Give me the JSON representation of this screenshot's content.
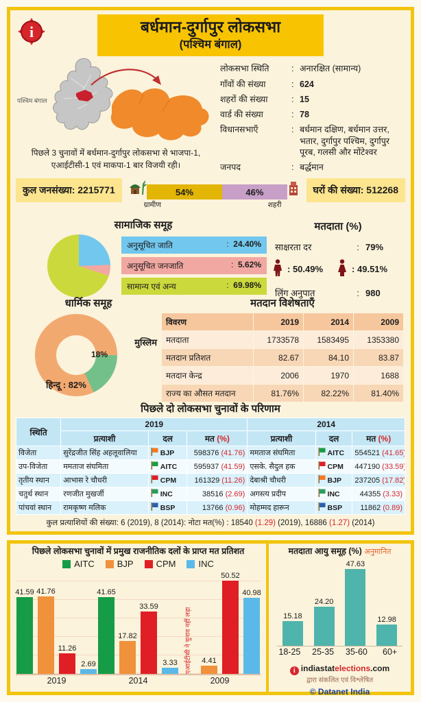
{
  "colors": {
    "frame_yellow": "#f2c40e",
    "banner_yellow": "#f8c402",
    "cream_bg": "#fbf3dc",
    "accent_red": "#d6262b",
    "pop_box_yellow": "#fce58e",
    "gold_bar": "#e3b505",
    "plum_bar": "#c79fc7",
    "results_header_blue": "#c3e6f5",
    "results_row_blue": "#d9f1fb",
    "voting_header_peach": "#f6c79d",
    "voting_row_peach": "#f8d7b6",
    "teal_bar": "#4fb4ab",
    "maroon_icon": "#7e1416"
  },
  "icons": {
    "info_icon": "i-target",
    "rural_icon": "hut",
    "urban_icon": "building",
    "male_icon": "person-male",
    "female_icon": "person-female",
    "party_icon": "flag",
    "brand_info_icon": "i-circle"
  },
  "header": {
    "title": "बर्धमान-दुर्गापुर लोकसभा",
    "subtitle": "(पश्चिम बंगाल)"
  },
  "map": {
    "state_label": "पश्चिम बंगाल",
    "caption": "पिछले 3 चुनावों में बर्धमान-दुर्गापुर लोकसभा से भाजपा-1, एआईटीसी-1 एवं माकपा-1 बार विजयी रही।"
  },
  "info": {
    "rows": [
      {
        "label": "लोकसभा स्थिति",
        "value": "अनारक्षित (सामान्य)",
        "bold": false
      },
      {
        "label": "गाँवों की संख्या",
        "value": "624",
        "bold": true
      },
      {
        "label": "शहरों की संख्या",
        "value": "15",
        "bold": true
      },
      {
        "label": "वार्ड की संख्या",
        "value": "78",
        "bold": true
      },
      {
        "label": "विधानसभाएँ",
        "value": "बर्धमान दक्षिण, बर्धमान उत्तर, भतार, दुर्गापुर पश्चिम, दुर्गापुर पूरब, गलसी और मोंटेश्वर",
        "bold": false
      },
      {
        "label": "जनपद",
        "value": "बर्द्धमान",
        "bold": false
      }
    ]
  },
  "population": {
    "total_label": "कुल जनसंख्या:",
    "total_value": "2215771",
    "rural_label": "ग्रामीण",
    "rural_value": 54,
    "rural_pct": "54%",
    "urban_label": "शहरी",
    "urban_value": 46,
    "urban_pct": "46%",
    "households_label": "घरों की संख्या:",
    "households_value": "512268"
  },
  "social": {
    "title": "सामाजिक समूह"
  },
  "voters": {
    "title": "मतदाता (%)",
    "literacy_label": "साक्षरता दर",
    "literacy_value": "79%",
    "male_pct": "50.49%",
    "female_pct": "49.51%",
    "sex_ratio_label": "लिंग अनुपात",
    "sex_ratio_value": "980"
  },
  "religion": {
    "title": "धार्मिक समूह"
  },
  "voting_table": {
    "title": "मतदान विशेषताएँ",
    "headers": [
      "विवरण",
      "2019",
      "2014",
      "2009"
    ],
    "rows": [
      [
        "मतदाता",
        "1733578",
        "1583495",
        "1353380"
      ],
      [
        "मतदान प्रतिशत",
        "82.67",
        "84.10",
        "83.87"
      ],
      [
        "मतदान केन्द्र",
        "2006",
        "1970",
        "1688"
      ],
      [
        "राज्य का औसत मतदान",
        "81.76%",
        "82.22%",
        "81.40%"
      ]
    ]
  },
  "results": {
    "title": "पिछले दो लोकसभा चुनावों के परिणाम",
    "col_status": "स्थिति",
    "year1": "2019",
    "year2": "2014",
    "col_candidate": "प्रत्याशी",
    "col_party": "दल",
    "col_votes": "मत",
    "col_votes_pct": "(%)",
    "rows": [
      {
        "position": "विजेता",
        "c1": "सुरेंद्रजीत सिंह अहलूवालिया",
        "p1": "BJP",
        "v1": "598376",
        "pct1": "(41.76)",
        "c2": "ममताज संघमिता",
        "p2": "AITC",
        "v2": "554521",
        "pct2": "(41.65)"
      },
      {
        "position": "उप-विजेता",
        "c1": "ममताज संघमिता",
        "p1": "AITC",
        "v1": "595937",
        "pct1": "(41.59)",
        "c2": "एसके. सैदुल हक",
        "p2": "CPM",
        "v2": "447190",
        "pct2": "(33.59)"
      },
      {
        "position": "तृतीय स्थान",
        "c1": "आभास रे चौधरी",
        "p1": "CPM",
        "v1": "161329",
        "pct1": "(11.26)",
        "c2": "देबाश्री चौधरी",
        "p2": "BJP",
        "v2": "237205",
        "pct2": "(17.82)"
      },
      {
        "position": "चतुर्थ स्थान",
        "c1": "रणजीत मुखर्जी",
        "p1": "INC",
        "v1": "38516",
        "pct1": "(2.69)",
        "c2": "अगस्त्य प्रदीप",
        "p2": "INC",
        "v2": "44355",
        "pct2": "(3.33)"
      },
      {
        "position": "पांचवां स्थान",
        "c1": "रामकृष्ण मलिक",
        "p1": "BSP",
        "v1": "13766",
        "pct1": "(0.96)",
        "c2": "मोहम्मद हारून",
        "p2": "BSP",
        "v2": "11862",
        "pct2": "(0.89)"
      }
    ],
    "footer": {
      "part1": "कुल प्रत्याशियों की संख्या: 6 (2019), 8 (2014): नोटा मत(%) : 18540 ",
      "red1": "(1.29)",
      "part2": " (2019), 16886 ",
      "red2": "(1.27)",
      "part3": " (2014)"
    }
  },
  "party_colors": {
    "BJP": "#f4791f",
    "AITC": "#1a9c40",
    "CPM": "#e01e25",
    "INC": "#2a9d5c",
    "BSP": "#2e5ea8"
  },
  "chart_data": [
    {
      "type": "pie",
      "title": "सामाजिक समूह",
      "labels": [
        "अनुसूचित जाति",
        "अनुसूचित जनजाति",
        "सामान्य एवं अन्य"
      ],
      "values": [
        24.4,
        5.62,
        69.98
      ],
      "colors": [
        "#72c7ee",
        "#f2a8a2",
        "#ccd93c"
      ],
      "start_angle_deg": 0,
      "legend_position": "right"
    },
    {
      "type": "pie",
      "subtype": "donut",
      "title": "धार्मिक समूह",
      "labels": [
        "मुस्लिम",
        "हिन्दू"
      ],
      "values": [
        18,
        82
      ],
      "colors": [
        "#74c08a",
        "#f2a970"
      ],
      "start_angle_deg": 90
    },
    {
      "type": "bar",
      "title": "पिछले लोकसभा चुनावों में प्रमुख राजनीतिक दलों के प्राप्त मत प्रतिशत",
      "categories": [
        "2019",
        "2014",
        "2009"
      ],
      "series": [
        {
          "name": "AITC",
          "color": "#169c46",
          "values": [
            41.59,
            41.65,
            null
          ]
        },
        {
          "name": "BJP",
          "color": "#f0913c",
          "values": [
            41.76,
            17.82,
            4.41
          ]
        },
        {
          "name": "CPM",
          "color": "#e01e25",
          "values": [
            11.26,
            33.59,
            50.52
          ]
        },
        {
          "name": "INC",
          "color": "#5ab9e8",
          "values": [
            2.69,
            3.33,
            40.98
          ]
        }
      ],
      "note_2009": "एआईटीसी ने चुनाव नहीं लड़ा",
      "ylim": [
        0,
        55
      ],
      "grid": true,
      "legend_position": "top"
    },
    {
      "type": "bar",
      "title": "मतदाता आयु समूह (%)",
      "title_suffix": "अनुमानित",
      "categories": [
        "18-25",
        "25-35",
        "35-60",
        "60+"
      ],
      "values": [
        15.18,
        24.2,
        47.63,
        12.98
      ],
      "color": "#4fb4ab",
      "ylim": [
        0,
        50
      ],
      "grid": false
    }
  ],
  "brand": {
    "site_part1": "indiastat",
    "site_part2": "elections",
    "site_part3": ".com",
    "tagline": "द्वारा संकलित एवं विश्लेषित",
    "copyright": "© Datanet India"
  }
}
